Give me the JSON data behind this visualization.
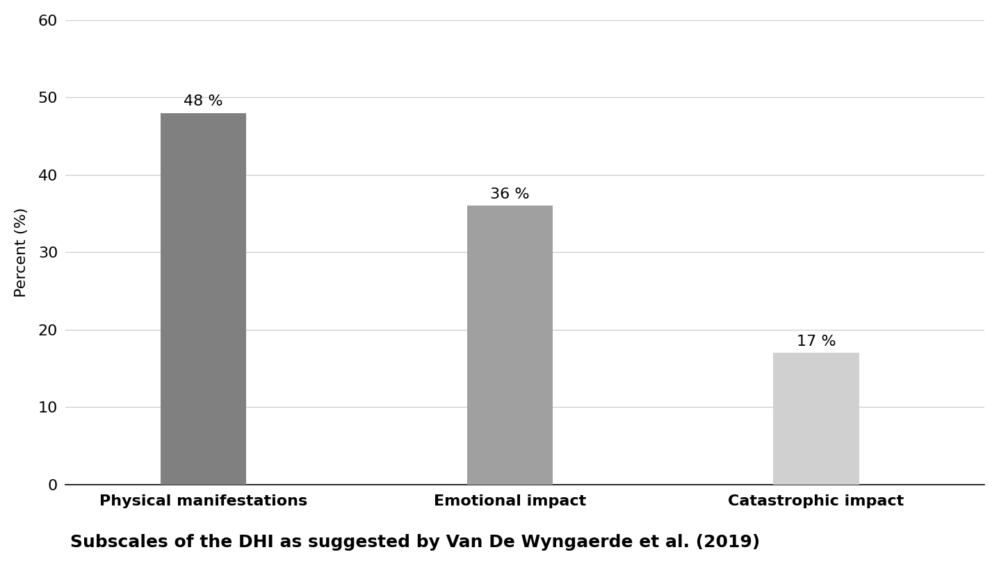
{
  "categories": [
    "Physical manifestations",
    "Emotional impact",
    "Catastrophic impact"
  ],
  "values": [
    48,
    36,
    17
  ],
  "bar_colors": [
    "#808080",
    "#a0a0a0",
    "#d0d0d0"
  ],
  "bar_labels": [
    "48 %",
    "36 %",
    "17 %"
  ],
  "ylabel": "Percent (%)",
  "xlabel": "Subscales of the DHI as suggested by Van De Wyngaerde et al. (2019)",
  "ylim": [
    0,
    60
  ],
  "yticks": [
    0,
    10,
    20,
    30,
    40,
    50,
    60
  ],
  "background_color": "#ffffff",
  "bar_width": 0.28,
  "label_fontsize": 16,
  "tick_fontsize": 16,
  "ylabel_fontsize": 16,
  "xlabel_fontsize": 18,
  "annotation_fontsize": 16,
  "grid_color": "#cccccc",
  "x_positions": [
    1,
    2,
    3
  ],
  "xlim": [
    0.55,
    3.55
  ]
}
